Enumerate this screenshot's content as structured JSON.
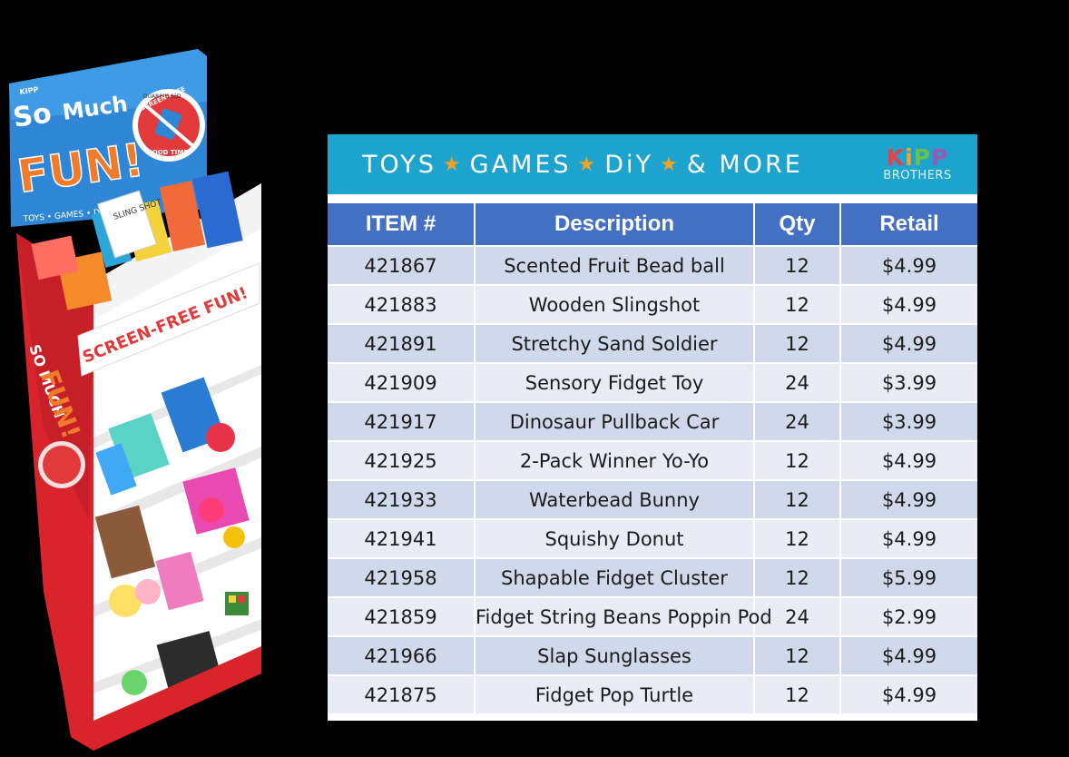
{
  "display": {
    "sign_word_1": "So",
    "sign_word_2": "Much",
    "sign_word_3": "FUN!",
    "sign_prefix": "KIPP",
    "badge_top": "GUARANTEED",
    "badge_main": "SCREEN-FREE",
    "badge_bottom": "GOOD TIME",
    "sign_footer": "TOYS • GAMES • DIY",
    "shelf_banner": "SCREEN-FREE FUN!",
    "side_word_1": "SO MUCH",
    "side_word_2": "FUN!",
    "package_label": "SLING SHOT"
  },
  "banner": {
    "words": [
      "TOYS",
      "GAMES",
      "DiY",
      "& MORE"
    ],
    "star_glyph": "★",
    "logo_letters": [
      "K",
      "i",
      "P",
      "P"
    ],
    "logo_sub": "BROTHERS",
    "background": "#1ca4cf",
    "star_color": "#f2a222"
  },
  "table": {
    "headers": [
      "ITEM #",
      "Description",
      "Qty",
      "Retail"
    ],
    "header_color": "#4470c4",
    "rows": [
      {
        "item": "421867",
        "description": "Scented Fruit Bead ball",
        "qty": "12",
        "retail": "$4.99"
      },
      {
        "item": "421883",
        "description": "Wooden Slingshot",
        "qty": "12",
        "retail": "$4.99"
      },
      {
        "item": "421891",
        "description": "Stretchy Sand Soldier",
        "qty": "12",
        "retail": "$4.99"
      },
      {
        "item": "421909",
        "description": "Sensory Fidget Toy",
        "qty": "24",
        "retail": "$3.99"
      },
      {
        "item": "421917",
        "description": "Dinosaur Pullback Car",
        "qty": "24",
        "retail": "$3.99"
      },
      {
        "item": "421925",
        "description": "2-Pack Winner Yo-Yo",
        "qty": "12",
        "retail": "$4.99"
      },
      {
        "item": "421933",
        "description": "Waterbead Bunny",
        "qty": "12",
        "retail": "$4.99"
      },
      {
        "item": "421941",
        "description": "Squishy Donut",
        "qty": "12",
        "retail": "$4.99"
      },
      {
        "item": "421958",
        "description": "Shapable Fidget Cluster",
        "qty": "12",
        "retail": "$5.99"
      },
      {
        "item": "421859",
        "description": "Fidget String Beans Poppin Pod",
        "qty": "24",
        "retail": "$2.99"
      },
      {
        "item": "421966",
        "description": "Slap Sunglasses",
        "qty": "12",
        "retail": "$4.99"
      },
      {
        "item": "421875",
        "description": "Fidget Pop Turtle",
        "qty": "12",
        "retail": "$4.99"
      }
    ]
  }
}
